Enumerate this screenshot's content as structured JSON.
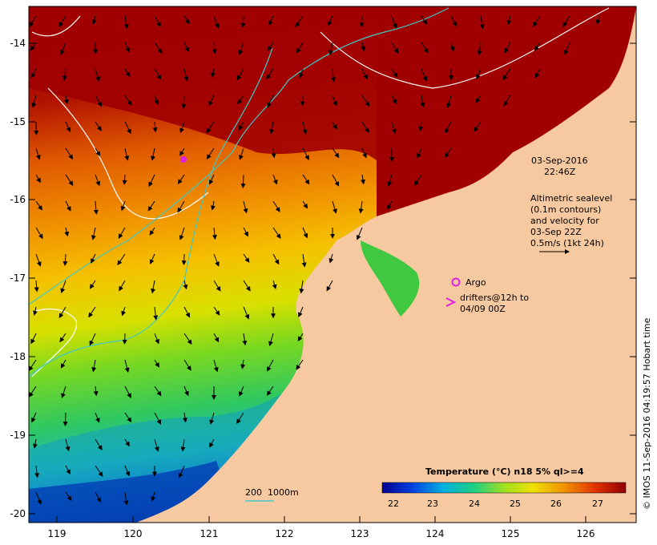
{
  "map": {
    "date_line1": "03-Sep-2016",
    "date_line2": "22:46Z",
    "info_lines": [
      "Altimetric sealevel",
      "(0.1m contours)",
      "and velocity for",
      "03-Sep 22Z",
      "0.5m/s (1kt 24h)"
    ],
    "argo_label": "Argo",
    "drifter_line1": "drifters@12h to",
    "drifter_line2": "04/09 00Z",
    "depth_label1": "200",
    "depth_label2": "1000m",
    "credit": "© IMOS 11-Sep-2016 04:19:57 Hobart time",
    "colorbar_title": "Temperature (°C) n18 5% ql>=4",
    "colorbar_ticks": [
      "22",
      "23",
      "24",
      "25",
      "26",
      "27"
    ],
    "lon_ticks": [
      "119",
      "120",
      "121",
      "122",
      "123",
      "124",
      "125",
      "126"
    ],
    "lat_ticks": [
      "-14",
      "-15",
      "-16",
      "-17",
      "-18",
      "-19",
      "-20"
    ],
    "colors": {
      "land": "#f7c9a0",
      "hot": "#a00000",
      "argo": "#e020e0",
      "contour_isobath": "#40c8c8"
    }
  }
}
